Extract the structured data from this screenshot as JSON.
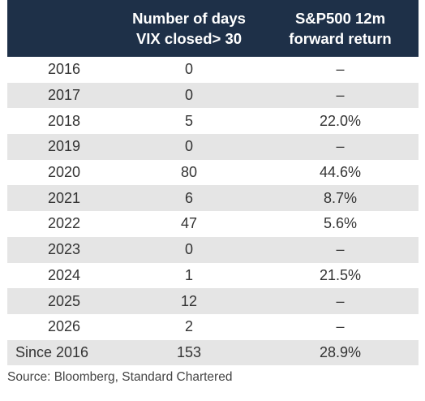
{
  "table": {
    "headers": {
      "col1": "",
      "col2_line1": "Number of days",
      "col2_line2": "VIX closed> 30",
      "col3_line1": "S&P500 12m",
      "col3_line2": "forward return"
    },
    "rows": [
      {
        "year": "2016",
        "days": "0",
        "ret": "–"
      },
      {
        "year": "2017",
        "days": "0",
        "ret": "–"
      },
      {
        "year": "2018",
        "days": "5",
        "ret": "22.0%"
      },
      {
        "year": "2019",
        "days": "0",
        "ret": "–"
      },
      {
        "year": "2020",
        "days": "80",
        "ret": "44.6%"
      },
      {
        "year": "2021",
        "days": "6",
        "ret": "8.7%"
      },
      {
        "year": "2022",
        "days": "47",
        "ret": "5.6%"
      },
      {
        "year": "2023",
        "days": "0",
        "ret": "–"
      },
      {
        "year": "2024",
        "days": "1",
        "ret": "21.5%"
      },
      {
        "year": "2025",
        "days": "12",
        "ret": "–"
      },
      {
        "year": "2026",
        "days": "2",
        "ret": "–"
      },
      {
        "year": "Since 2016",
        "days": "153",
        "ret": "28.9%"
      }
    ]
  },
  "source": "Source: Bloomberg, Standard Chartered",
  "colors": {
    "header_bg": "#1e3048",
    "stripe": "#e5e5e5",
    "text": "#333333"
  }
}
